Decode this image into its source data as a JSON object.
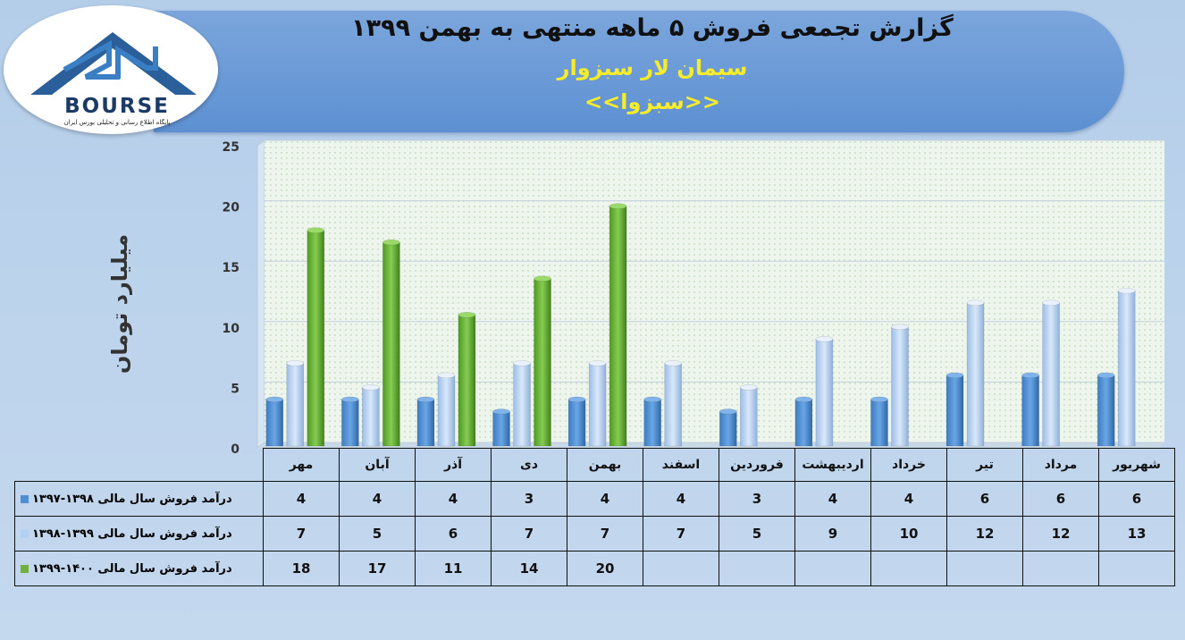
{
  "header": {
    "title": "گزارش تجمعی فروش ۵ ماهه منتهی به بهمن ۱۳۹۹",
    "company": "سیمان لار سبزوار",
    "ticker": "<<سبزوا>>"
  },
  "logo": {
    "name": "BOURSE",
    "tagline": "پایگاه اطلاع رسانی و تحلیلی بورس ایران"
  },
  "colors": {
    "series_1397_1398": "#4e8fd3",
    "series_1398_1399": "#b2d0f2",
    "series_1399_1400": "#6fb13c",
    "banner": "#5d90d2",
    "title_accent": "#f6ec2a"
  },
  "chart_data": {
    "type": "bar",
    "ylabel": "میلیارد تومان",
    "ylim": [
      0,
      25
    ],
    "yticks": [
      0,
      5,
      10,
      15,
      20,
      25
    ],
    "grid": true,
    "categories": [
      "مهر",
      "آبان",
      "آذر",
      "دی",
      "بهمن",
      "اسفند",
      "فروردین",
      "اردیبهشت",
      "خرداد",
      "تیر",
      "مرداد",
      "شهریور"
    ],
    "series": [
      {
        "name": "درآمد فروش سال مالی ۱۳۹۸-۱۳۹۷",
        "values": [
          4,
          4,
          4,
          3,
          4,
          4,
          3,
          4,
          4,
          6,
          6,
          6
        ]
      },
      {
        "name": "درآمد فروش سال مالی ۱۳۹۹-۱۳۹۸",
        "values": [
          7,
          5,
          6,
          7,
          7,
          7,
          5,
          9,
          10,
          12,
          12,
          13
        ]
      },
      {
        "name": "درآمد فروش سال مالی ۱۴۰۰-۱۳۹۹",
        "values": [
          18,
          17,
          11,
          14,
          20,
          null,
          null,
          null,
          null,
          null,
          null,
          null
        ]
      }
    ]
  }
}
